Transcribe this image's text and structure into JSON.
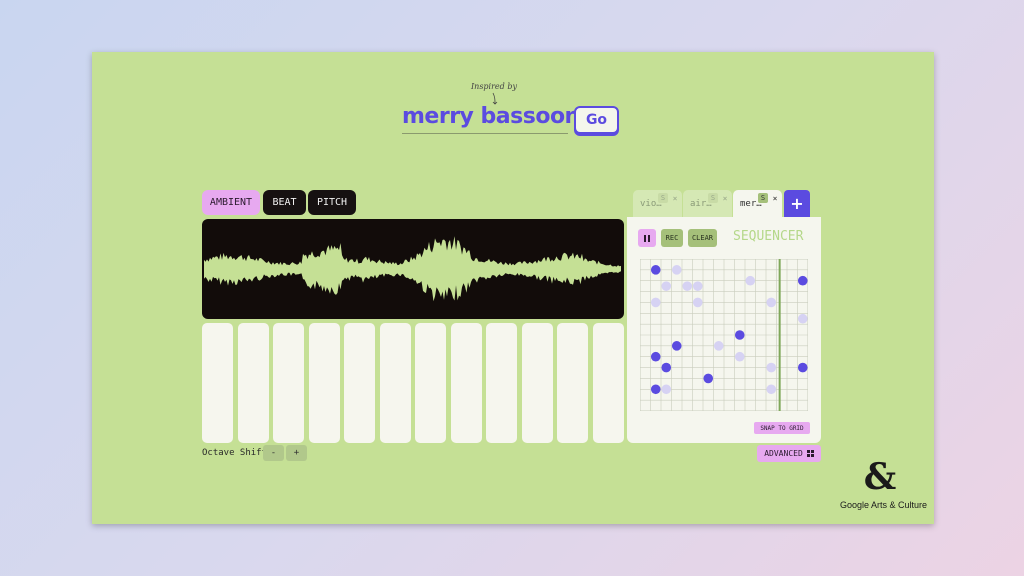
{
  "header": {
    "inspired_label": "Inspired by",
    "title": "merry bassoon",
    "go_label": "Go"
  },
  "modes": {
    "ambient": "AMBIENT",
    "beat": "BEAT",
    "pitch": "PITCH"
  },
  "keyboard": {
    "key_count": 12,
    "octave_label": "Octave Shift",
    "minus": "-",
    "plus": "+"
  },
  "tabs": [
    {
      "label": "vio…",
      "s": "S",
      "x": "×",
      "active": false
    },
    {
      "label": "air…",
      "s": "S",
      "x": "×",
      "active": false
    },
    {
      "label": "mer…",
      "s": "S",
      "x": "×",
      "active": true
    }
  ],
  "add_tab": "+",
  "sequencer": {
    "title": "SEQUENCER",
    "rec": "REC",
    "clear": "CLEAR",
    "snap": "SNAP TO GRID",
    "columns": 16,
    "rows": 14,
    "playhead_col": 13.3,
    "notes_active": [
      [
        1,
        0.5
      ],
      [
        15,
        1.5
      ],
      [
        9,
        6.5
      ],
      [
        3,
        7.5
      ],
      [
        1,
        8.5
      ],
      [
        2,
        9.5
      ],
      [
        6,
        10.5
      ],
      [
        15,
        9.5
      ],
      [
        1,
        11.5
      ]
    ],
    "notes_ghost": [
      [
        3,
        0.5
      ],
      [
        2,
        2
      ],
      [
        4,
        2
      ],
      [
        5,
        2
      ],
      [
        10,
        1.5
      ],
      [
        1,
        3.5
      ],
      [
        5,
        3.5
      ],
      [
        12,
        3.5
      ],
      [
        15,
        5
      ],
      [
        7,
        7.5
      ],
      [
        9,
        8.5
      ],
      [
        12,
        9.5
      ],
      [
        2,
        11.5
      ],
      [
        12,
        11.5
      ]
    ]
  },
  "advanced_label": "ADVANCED",
  "branding": {
    "logo_symbol": "&",
    "logo_text": "Google Arts & Culture"
  },
  "colors": {
    "panel": "#c5e095",
    "accent": "#5b4be0",
    "pink": "#e7a9f0",
    "dark": "#161111"
  }
}
